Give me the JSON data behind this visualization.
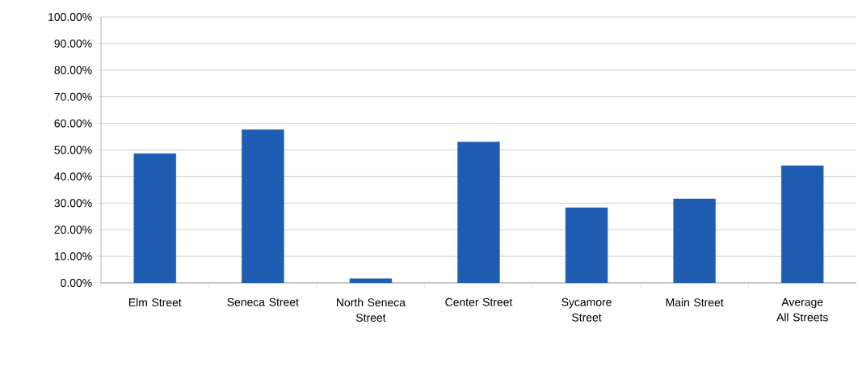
{
  "chart_data": {
    "type": "bar",
    "categories": [
      "Elm Street",
      "Seneca Street",
      "North Seneca Street",
      "Center Street",
      "Sycamore Street",
      "Main Street",
      "Average All Streets"
    ],
    "values": [
      48.6,
      57.6,
      1.6,
      53.0,
      28.3,
      31.6,
      44.1
    ],
    "color": "#1f5db3",
    "ylim": [
      0,
      100
    ],
    "yticks": [
      {
        "value": 0,
        "label": "0.00%"
      },
      {
        "value": 10,
        "label": "10.00%"
      },
      {
        "value": 20,
        "label": "20.00%"
      },
      {
        "value": 30,
        "label": "30.00%"
      },
      {
        "value": 40,
        "label": "40.00%"
      },
      {
        "value": 50,
        "label": "50.00%"
      },
      {
        "value": 60,
        "label": "60.00%"
      },
      {
        "value": 70,
        "label": "70.00%"
      },
      {
        "value": 80,
        "label": "80.00%"
      },
      {
        "value": 90,
        "label": "90.00%"
      },
      {
        "value": 100,
        "label": "100.00%"
      }
    ],
    "grid": "y"
  }
}
